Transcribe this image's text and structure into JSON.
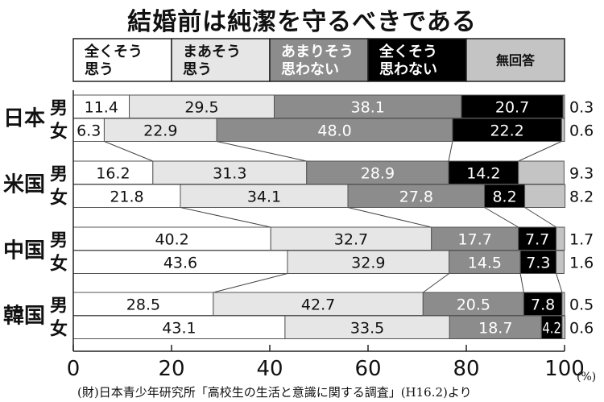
{
  "title": "結婚前は純潔を守るべきである",
  "note": "(財)日本青少年研究所「高校生の生活と意識に関する調査」(H16.2)より",
  "unit_label": "(%)",
  "chart_data": {
    "type": "bar",
    "orientation": "horizontal",
    "stacked": true,
    "title": "結婚前は純潔を守るべきである",
    "xlabel": "",
    "x_unit": "(%)",
    "xlim": [
      0,
      100
    ],
    "xticks": [
      0,
      20,
      40,
      60,
      80,
      100
    ],
    "legend_position": "top",
    "groups": [
      "日本",
      "米国",
      "中国",
      "韓国"
    ],
    "subgroups": [
      "男",
      "女"
    ],
    "categories": [
      "日本 男",
      "日本 女",
      "米国 男",
      "米国 女",
      "中国 男",
      "中国 女",
      "韓国 男",
      "韓国 女"
    ],
    "series": [
      {
        "name": "全くそう思う",
        "legend_lines": [
          "全くそう",
          "思う"
        ],
        "color": "#ffffff",
        "text_color": "#111111",
        "values": [
          11.4,
          6.3,
          16.2,
          21.8,
          40.2,
          43.6,
          28.5,
          43.1
        ]
      },
      {
        "name": "まあそう思う",
        "legend_lines": [
          "まあそう",
          "思う"
        ],
        "color": "#e6e6e6",
        "text_color": "#111111",
        "values": [
          29.5,
          22.9,
          31.3,
          34.1,
          32.7,
          32.9,
          42.7,
          33.5
        ]
      },
      {
        "name": "あまりそう思わない",
        "legend_lines": [
          "あまりそう",
          "思わない"
        ],
        "color": "#8c8c8c",
        "text_color": "#ffffff",
        "values": [
          38.1,
          48.0,
          28.9,
          27.8,
          17.7,
          14.5,
          20.5,
          18.7
        ]
      },
      {
        "name": "全くそう思わない",
        "legend_lines": [
          "全くそう",
          "思わない"
        ],
        "color": "#000000",
        "text_color": "#ffffff",
        "values": [
          20.7,
          22.2,
          14.2,
          8.2,
          7.7,
          7.3,
          7.8,
          4.2
        ]
      },
      {
        "name": "無回答",
        "legend_lines": [
          "無回答"
        ],
        "color": "#c4c4c4",
        "text_color": "#111111",
        "values": [
          0.3,
          0.6,
          9.3,
          8.2,
          1.7,
          1.6,
          0.5,
          0.6
        ]
      }
    ],
    "source": "(財)日本青少年研究所「高校生の生活と意識に関する調査」(H16.2)より"
  }
}
